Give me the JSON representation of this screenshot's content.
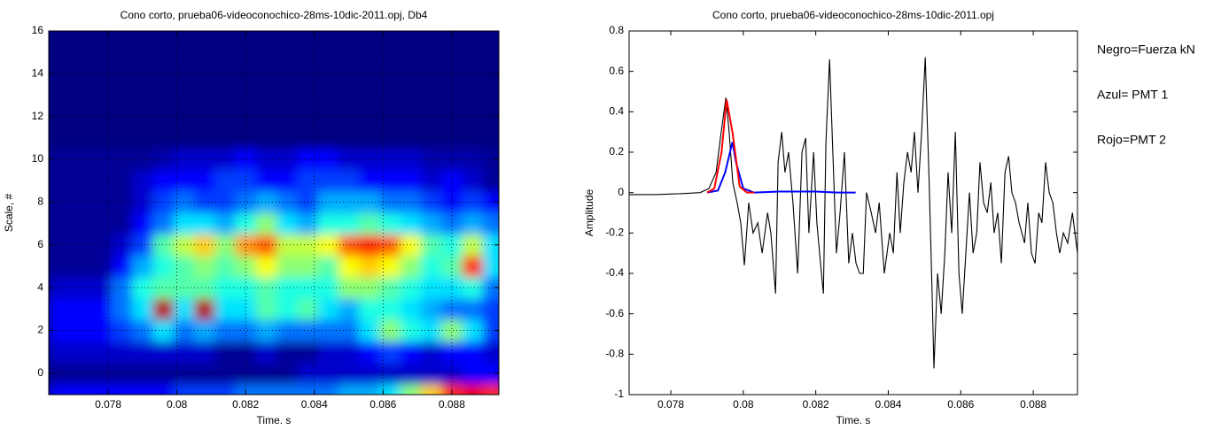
{
  "chart_data": [
    {
      "type": "heatmap",
      "title": "Cono corto, prueba06-videoconochico-28ms-10dic-2011.opj, Db4",
      "x_label": "Time. s",
      "y_label": "Scale, #",
      "colormap": "jet",
      "clim": [
        0.08,
        1
      ],
      "grid": true,
      "xlim": [
        0.07627,
        0.08937
      ],
      "ylim": [
        -1,
        16
      ],
      "xticks": [
        0.078,
        0.08,
        0.082,
        0.084,
        0.086,
        0.088
      ],
      "yticks": [
        0,
        2,
        4,
        6,
        8,
        10,
        12,
        14,
        16
      ],
      "x": [
        0.0766,
        0.0772,
        0.0778,
        0.0784,
        0.079,
        0.0796,
        0.0802,
        0.0808,
        0.0814,
        0.082,
        0.0826,
        0.0832,
        0.0838,
        0.0844,
        0.085,
        0.0856,
        0.0862,
        0.0868,
        0.0874,
        0.088,
        0.0886,
        0.0892
      ],
      "y": [
        -1,
        0,
        1,
        2,
        3,
        4,
        5,
        6,
        7,
        8,
        9,
        10
      ],
      "z": [
        [
          0.2,
          0.2,
          0.2,
          0.2,
          0.2,
          0.2,
          0.25,
          0.25,
          0.25,
          0.3,
          0.3,
          0.3,
          0.3,
          0.3,
          0.35,
          0.35,
          0.4,
          0.55,
          0.7,
          0.85,
          0.9,
          0.85
        ],
        [
          0.1,
          0.1,
          0.1,
          0.1,
          0.1,
          0.1,
          0.1,
          0.1,
          0.1,
          0.1,
          0.1,
          0.1,
          0.15,
          0.15,
          0.15,
          0.15,
          0.15,
          0.15,
          0.15,
          0.15,
          0.2,
          0.2
        ],
        [
          0.15,
          0.15,
          0.15,
          0.15,
          0.15,
          0.15,
          0.15,
          0.15,
          0.1,
          0.1,
          0.15,
          0.1,
          0.1,
          0.15,
          0.15,
          0.2,
          0.25,
          0.2,
          0.15,
          0.2,
          0.2,
          0.15
        ],
        [
          0.2,
          0.2,
          0.2,
          0.25,
          0.3,
          0.4,
          0.3,
          0.35,
          0.3,
          0.3,
          0.35,
          0.3,
          0.3,
          0.3,
          0.3,
          0.4,
          0.55,
          0.45,
          0.4,
          0.55,
          0.4,
          0.25
        ],
        [
          0.2,
          0.2,
          0.2,
          0.3,
          0.4,
          0.95,
          0.4,
          0.95,
          0.4,
          0.4,
          0.5,
          0.45,
          0.5,
          0.4,
          0.35,
          0.45,
          0.45,
          0.4,
          0.35,
          0.3,
          0.3,
          0.25
        ],
        [
          0.15,
          0.15,
          0.15,
          0.3,
          0.45,
          0.5,
          0.5,
          0.5,
          0.45,
          0.45,
          0.5,
          0.45,
          0.45,
          0.45,
          0.55,
          0.55,
          0.5,
          0.45,
          0.4,
          0.4,
          0.45,
          0.3
        ],
        [
          0.1,
          0.1,
          0.1,
          0.2,
          0.35,
          0.45,
          0.5,
          0.55,
          0.5,
          0.55,
          0.65,
          0.55,
          0.55,
          0.5,
          0.65,
          0.7,
          0.65,
          0.55,
          0.45,
          0.5,
          0.85,
          0.4
        ],
        [
          0.1,
          0.1,
          0.1,
          0.15,
          0.25,
          0.5,
          0.6,
          0.7,
          0.55,
          0.75,
          0.8,
          0.6,
          0.6,
          0.65,
          0.8,
          0.85,
          0.8,
          0.65,
          0.5,
          0.45,
          0.6,
          0.4
        ],
        [
          0.1,
          0.1,
          0.1,
          0.1,
          0.2,
          0.3,
          0.4,
          0.4,
          0.35,
          0.45,
          0.55,
          0.4,
          0.35,
          0.45,
          0.45,
          0.5,
          0.45,
          0.4,
          0.35,
          0.3,
          0.35,
          0.3
        ],
        [
          0.1,
          0.1,
          0.1,
          0.1,
          0.15,
          0.25,
          0.3,
          0.25,
          0.25,
          0.3,
          0.35,
          0.3,
          0.25,
          0.35,
          0.35,
          0.35,
          0.3,
          0.3,
          0.25,
          0.2,
          0.25,
          0.2
        ],
        [
          0.1,
          0.1,
          0.1,
          0.1,
          0.15,
          0.2,
          0.2,
          0.2,
          0.25,
          0.25,
          0.2,
          0.2,
          0.25,
          0.25,
          0.25,
          0.2,
          0.2,
          0.2,
          0.15,
          0.2,
          0.15,
          0.1
        ],
        [
          0.1,
          0.1,
          0.1,
          0.1,
          0.1,
          0.12,
          0.15,
          0.15,
          0.15,
          0.2,
          0.15,
          0.15,
          0.2,
          0.2,
          0.15,
          0.15,
          0.15,
          0.15,
          0.12,
          0.12,
          0.12,
          0.1
        ]
      ]
    },
    {
      "type": "line",
      "title": "Cono corto, prueba06-videoconochico-28ms-10dic-2011.opj",
      "x_label": "Time. s",
      "y_label": "Amplitude",
      "grid": false,
      "xlim": [
        0.07685,
        0.08922
      ],
      "ylim": [
        -1,
        0.8
      ],
      "xticks": [
        0.078,
        0.08,
        0.082,
        0.084,
        0.086,
        0.088
      ],
      "yticks": [
        -1,
        -0.8,
        -0.6,
        -0.4,
        -0.2,
        0,
        0.2,
        0.4,
        0.6,
        0.8
      ],
      "series": [
        {
          "name": "Negro=Fuerza kN",
          "color": "#000000",
          "x": [
            0.07685,
            0.07758,
            0.07832,
            0.07881,
            0.07905,
            0.07925,
            0.07939,
            0.07952,
            0.07961,
            0.07971,
            0.07983,
            0.07993,
            0.08003,
            0.08015,
            0.08027,
            0.0804,
            0.08052,
            0.08067,
            0.08076,
            0.08089,
            0.08096,
            0.08106,
            0.08115,
            0.08125,
            0.08137,
            0.0815,
            0.08162,
            0.08172,
            0.08181,
            0.08194,
            0.08203,
            0.08213,
            0.08221,
            0.08228,
            0.08238,
            0.08247,
            0.08257,
            0.08267,
            0.08279,
            0.08291,
            0.08301,
            0.08311,
            0.08321,
            0.08331,
            0.0834,
            0.08353,
            0.08365,
            0.08375,
            0.08389,
            0.08404,
            0.08414,
            0.08424,
            0.08433,
            0.08443,
            0.08453,
            0.08463,
            0.08472,
            0.08482,
            0.08492,
            0.08502,
            0.08512,
            0.08521,
            0.08526,
            0.08536,
            0.08546,
            0.08556,
            0.08565,
            0.08575,
            0.08585,
            0.08595,
            0.08604,
            0.08614,
            0.08624,
            0.08634,
            0.08644,
            0.08653,
            0.08663,
            0.08673,
            0.08683,
            0.08692,
            0.08702,
            0.08712,
            0.08722,
            0.08732,
            0.08741,
            0.08751,
            0.08761,
            0.08776,
            0.08785,
            0.08795,
            0.08805,
            0.08815,
            0.08824,
            0.08834,
            0.08844,
            0.08854,
            0.08864,
            0.08873,
            0.08883,
            0.08895,
            0.08908,
            0.08922
          ],
          "values": [
            -0.01,
            -0.01,
            -0.005,
            0,
            0.02,
            0.1,
            0.3,
            0.47,
            0.3,
            0.05,
            -0.05,
            -0.15,
            -0.36,
            -0.05,
            -0.2,
            -0.15,
            -0.3,
            -0.1,
            -0.2,
            -0.5,
            0.15,
            0.3,
            0.1,
            0.2,
            -0.05,
            -0.4,
            0.2,
            0.27,
            -0.2,
            0.2,
            -0.15,
            -0.35,
            -0.5,
            0.25,
            0.66,
            0.2,
            -0.3,
            -0.1,
            0.2,
            -0.35,
            -0.2,
            -0.35,
            -0.4,
            -0.4,
            0,
            -0.1,
            -0.2,
            -0.05,
            -0.4,
            -0.2,
            -0.3,
            0.1,
            -0.2,
            0.05,
            0.2,
            0.1,
            0.3,
            0,
            0.3,
            0.67,
            0.1,
            -0.5,
            -0.87,
            -0.4,
            -0.6,
            -0.3,
            0.1,
            -0.2,
            0.3,
            -0.4,
            -0.6,
            -0.3,
            0,
            -0.3,
            -0.2,
            0.15,
            -0.05,
            -0.1,
            0.05,
            -0.2,
            -0.1,
            -0.35,
            0.1,
            0.18,
            0,
            -0.05,
            -0.15,
            -0.25,
            -0.05,
            -0.3,
            -0.35,
            -0.1,
            -0.15,
            0.15,
            0,
            -0.05,
            -0.2,
            -0.3,
            -0.2,
            -0.25,
            -0.1,
            -0.3
          ]
        },
        {
          "name": "Azul= PMT 1",
          "color": "#0000ff",
          "x": [
            0.079,
            0.0793,
            0.0795,
            0.0797,
            0.0798,
            0.08,
            0.0803,
            0.081,
            0.0815,
            0.082,
            0.0826,
            0.0831
          ],
          "values": [
            0,
            0.01,
            0.1,
            0.25,
            0.15,
            0.02,
            0,
            0.005,
            0.005,
            0.005,
            0,
            0
          ]
        },
        {
          "name": "Rojo=PMT 2",
          "color": "#ff0000",
          "x": [
            0.079,
            0.0792,
            0.0794,
            0.07954,
            0.0797,
            0.0799,
            0.0801,
            0.0803
          ],
          "values": [
            0,
            0.02,
            0.2,
            0.46,
            0.3,
            0.03,
            0,
            0
          ]
        }
      ]
    }
  ]
}
